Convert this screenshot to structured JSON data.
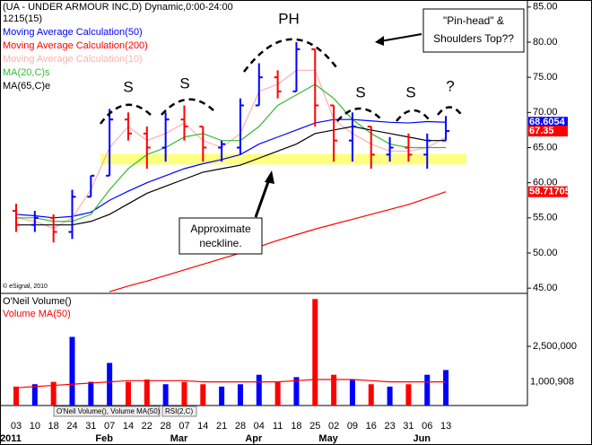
{
  "chart_data": {
    "type": "ohlc",
    "title": "(UA - UNDER ARMOUR INC,D) Dynamic,0:00-24:00",
    "subtitle": "1215(15)",
    "copyright": "© eSignal, 2010",
    "categories": [
      "03",
      "10",
      "18",
      "24",
      "31",
      "07",
      "14",
      "22",
      "28",
      "07",
      "14",
      "21",
      "28",
      "04",
      "11",
      "18",
      "25",
      "02",
      "09",
      "16",
      "23",
      "31",
      "06",
      "13"
    ],
    "months": [
      "2011",
      null,
      null,
      null,
      null,
      "Feb",
      null,
      null,
      null,
      "Mar",
      null,
      null,
      null,
      "Apr",
      null,
      null,
      null,
      "May",
      null,
      null,
      null,
      null,
      "Jun",
      null
    ],
    "open": [
      56,
      54,
      55,
      53,
      58,
      61,
      69,
      67,
      65,
      69,
      68,
      65,
      65,
      71,
      75,
      73,
      79,
      71,
      66,
      68,
      64,
      65,
      64,
      66
    ],
    "high": [
      57,
      56,
      55.5,
      59,
      61,
      70.5,
      70,
      68,
      70,
      71,
      68,
      66,
      72,
      77,
      76,
      80,
      79,
      71,
      70,
      68,
      66.5,
      67,
      67,
      69.5
    ],
    "low": [
      53,
      53,
      51.5,
      52,
      58,
      61,
      66,
      62,
      63,
      66,
      63,
      63,
      64,
      71,
      72,
      73,
      68,
      63,
      63,
      62,
      63,
      63,
      62,
      66
    ],
    "close": [
      54,
      55,
      53,
      58,
      61,
      69,
      67,
      65,
      69,
      68,
      65,
      65.5,
      71,
      75,
      73,
      79,
      71,
      66,
      68,
      64,
      65,
      64,
      66,
      67.35
    ],
    "up_color": "#0000ff",
    "down_color": "#ff0000",
    "ylim": [
      44,
      86
    ],
    "yticks": [
      {
        "value": 45,
        "label": "45.00"
      },
      {
        "value": 50,
        "label": "50.00"
      },
      {
        "value": 55,
        "label": "55.00"
      },
      {
        "value": 60,
        "label": "60.00"
      },
      {
        "value": 65,
        "label": "65.00"
      },
      {
        "value": 70,
        "label": "70.00"
      },
      {
        "value": 75,
        "label": "75.00"
      },
      {
        "value": 80,
        "label": "80.00"
      },
      {
        "value": 85,
        "label": "85.00"
      }
    ],
    "neckline_band": [
      62.6,
      64.1
    ],
    "neckline_color": "#ffff80",
    "series": [
      {
        "name": "Moving Average Calculation(50)",
        "color": "#0000ff",
        "values": [
          55.5,
          55.3,
          55,
          55.2,
          55.8,
          57.5,
          58.8,
          60,
          61,
          62,
          62.7,
          63.3,
          64,
          65.5,
          66.5,
          67.5,
          68.5,
          69,
          69,
          68.8,
          68.6,
          68.5,
          68.7,
          68.6054
        ]
      },
      {
        "name": "Moving Average Calculation(200)",
        "color": "#ff0000",
        "values": [
          null,
          null,
          null,
          null,
          null,
          44.5,
          45.3,
          46,
          46.8,
          47.6,
          48.4,
          49.2,
          50,
          50.9,
          51.8,
          52.6,
          53.4,
          54.1,
          54.8,
          55.5,
          56.2,
          56.9,
          57.8,
          58.71705
        ]
      },
      {
        "name": "Moving Average Calculation(10)",
        "color": "#ffb0b0",
        "values": [
          55,
          54.5,
          53.5,
          55,
          59,
          65,
          68,
          66,
          67,
          68.5,
          66,
          65,
          67,
          73,
          74,
          76,
          76,
          69,
          67,
          65.5,
          64.5,
          64.5,
          65,
          66.5
        ]
      },
      {
        "name": "MA(20,C)s",
        "color": "#33bb33",
        "values": [
          55,
          55,
          54.5,
          54.5,
          55.5,
          59,
          62,
          64,
          65,
          66.5,
          67,
          66,
          66,
          68,
          71,
          72.5,
          74,
          72,
          69,
          67,
          65.5,
          65,
          65,
          65
        ]
      },
      {
        "name": "MA(65,C)e",
        "color": "#000000",
        "values": [
          54,
          54,
          54,
          54,
          54.5,
          55.5,
          57,
          58.5,
          59.5,
          60.5,
          61.5,
          62,
          62.5,
          63.5,
          64.5,
          65.5,
          67,
          67.5,
          68,
          67.5,
          67,
          66.5,
          66,
          66
        ]
      }
    ],
    "volume": {
      "title": "O'Neil Volume()",
      "ma_name": "Volume MA(50)",
      "values": [
        800000,
        900000,
        1000000,
        2900000,
        1000000,
        1800000,
        1000000,
        1100000,
        900000,
        1000000,
        900000,
        800000,
        900000,
        1300000,
        1000000,
        1200000,
        4500000,
        1300000,
        1100000,
        900000,
        800000,
        900000,
        1300000,
        1500000
      ],
      "ma_values": [
        750000,
        800000,
        850000,
        900000,
        950000,
        1000000,
        1050000,
        1050000,
        1050000,
        1050000,
        1000000,
        1000000,
        1000000,
        1000000,
        1000000,
        1050000,
        1100000,
        1100000,
        1100000,
        1050000,
        1000000,
        1000000,
        1000000,
        1000908
      ],
      "ma_value_labels": [
        null,
        null,
        null,
        null,
        null,
        null,
        null,
        null,
        null,
        null,
        null,
        null,
        null,
        null,
        null,
        null,
        null,
        null,
        null,
        null,
        null,
        null,
        null,
        "1,000,908"
      ],
      "ylim": [
        0,
        4700000
      ],
      "yticks": [
        {
          "value": 2500000,
          "label": "2,500,000"
        }
      ]
    },
    "tabs": [
      "O'Neil Volume(), Volume MA(50)",
      "RSI(2,C)"
    ],
    "annotations": {
      "ph": "PH",
      "s1": "S",
      "s2": "S",
      "s3": "S",
      "s4": "S",
      "q": "?",
      "callout_top": [
        "\"Pin-head\" &",
        "Shoulders Top??"
      ],
      "callout_bottom": [
        "Approximate",
        "neckline."
      ]
    }
  }
}
